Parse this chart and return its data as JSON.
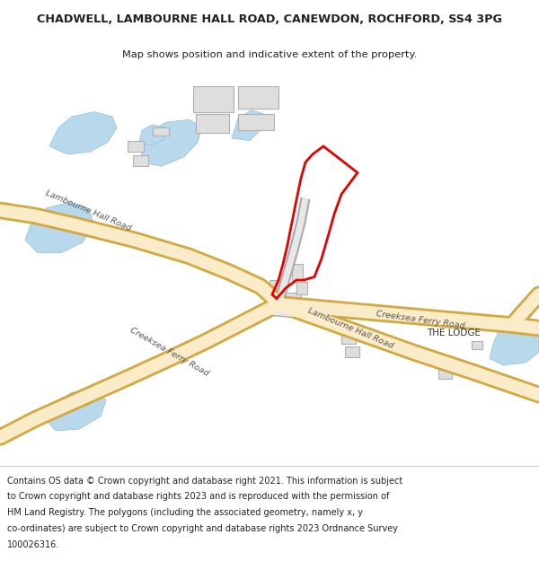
{
  "title": "CHADWELL, LAMBOURNE HALL ROAD, CANEWDON, ROCHFORD, SS4 3PG",
  "subtitle": "Map shows position and indicative extent of the property.",
  "footer_lines": [
    "Contains OS data © Crown copyright and database right 2021. This information is subject",
    "to Crown copyright and database rights 2023 and is reproduced with the permission of",
    "HM Land Registry. The polygons (including the associated geometry, namely x, y",
    "co-ordinates) are subject to Crown copyright and database rights 2023 Ordnance Survey",
    "100026316."
  ],
  "bg_color": "#ffffff",
  "map_bg": "#f8f8f8",
  "road_fill": "#faecc8",
  "road_edge": "#d4a840",
  "water_color": "#b8d8ec",
  "building_color": "#dedede",
  "building_edge": "#b0b0b0",
  "plot_color": "#e60000",
  "road_label_color": "#555555",
  "lodge_label_color": "#333333",
  "gray_road_color": "#c8c8c8",
  "gray_road_edge": "#aaaaaa"
}
